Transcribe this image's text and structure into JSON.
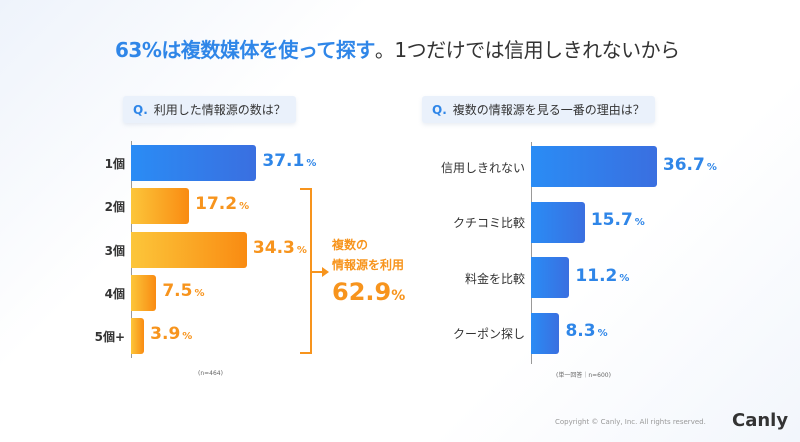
{
  "title": {
    "highlight": "63%は複数媒体を使って探す",
    "rest": "。1つだけでは信用しきれないから"
  },
  "chart_data": [
    {
      "type": "bar",
      "orientation": "horizontal",
      "question_prefix": "Q.",
      "title": "利用した情報源の数は？",
      "categories": [
        "1個",
        "2個",
        "3個",
        "4個",
        "5個+"
      ],
      "values": [
        37.1,
        17.2,
        34.3,
        7.5,
        3.9
      ],
      "unit": "%",
      "colors": [
        "#2f86e8",
        "#f7941d",
        "#f7941d",
        "#f7941d",
        "#f7941d"
      ],
      "note": "(n=464)",
      "annotation": {
        "line1": "複数の",
        "line2": "情報源を利用",
        "value": "62.9",
        "unit": "%"
      }
    },
    {
      "type": "bar",
      "orientation": "horizontal",
      "question_prefix": "Q.",
      "title": "複数の情報源を見る一番の理由は？",
      "categories": [
        "信用しきれない",
        "クチコミ比較",
        "料金を比較",
        "クーポン探し"
      ],
      "values": [
        36.7,
        15.7,
        11.2,
        8.3
      ],
      "unit": "%",
      "colors": [
        "#2f86e8"
      ],
      "note": "(単一回答｜n=600)"
    }
  ],
  "footer": {
    "copyright": "Copyright © Canly, Inc. All rights reserved.",
    "logo": "Canly"
  }
}
